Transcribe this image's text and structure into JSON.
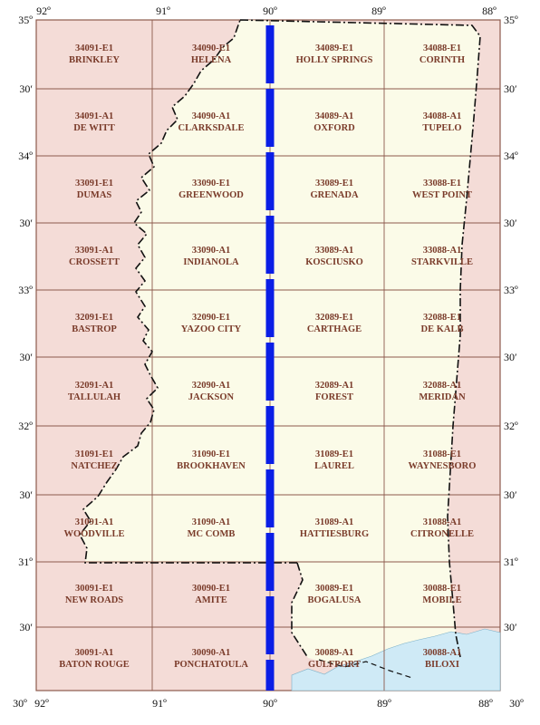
{
  "colors": {
    "outside_fill": "#f4dcd7",
    "inside_fill": "#fbfbe8",
    "water_fill": "#cfeaf6",
    "grid_line": "#8c5a4c",
    "label_text": "#7a3b2a",
    "meridian_90": "#0a1ee6",
    "border": "#111111"
  },
  "top_labels": [
    "92º",
    "91º",
    "90º",
    "89º",
    "88º"
  ],
  "bottom_labels": [
    "30º",
    "92º",
    "91º",
    "90º",
    "89º",
    "88º",
    "30º"
  ],
  "left_labels": [
    "35º",
    "30′",
    "34º",
    "30′",
    "33º",
    "30′",
    "32º",
    "30′",
    "31º",
    "30′"
  ],
  "right_labels": [
    "35º",
    "30′",
    "34º",
    "30′",
    "33º",
    "30′",
    "32º",
    "30′",
    "31º",
    "30′"
  ],
  "quads": [
    [
      {
        "code": "34091-E1",
        "name": "BRINKLEY"
      },
      {
        "code": "34090-E1",
        "name": "HELENA"
      },
      {
        "code": "34089-E1",
        "name": "HOLLY SPRINGS"
      },
      {
        "code": "34088-E1",
        "name": "CORINTH"
      }
    ],
    [
      {
        "code": "34091-A1",
        "name": "DE WITT"
      },
      {
        "code": "34090-A1",
        "name": "CLARKSDALE"
      },
      {
        "code": "34089-A1",
        "name": "OXFORD"
      },
      {
        "code": "34088-A1",
        "name": "TUPELO"
      }
    ],
    [
      {
        "code": "33091-E1",
        "name": "DUMAS"
      },
      {
        "code": "33090-E1",
        "name": "GREENWOOD"
      },
      {
        "code": "33089-E1",
        "name": "GRENADA"
      },
      {
        "code": "33088-E1",
        "name": "WEST POINT"
      }
    ],
    [
      {
        "code": "33091-A1",
        "name": "CROSSETT"
      },
      {
        "code": "33090-A1",
        "name": "INDIANOLA"
      },
      {
        "code": "33089-A1",
        "name": "KOSCIUSKO"
      },
      {
        "code": "33088-A1",
        "name": "STARKVILLE"
      }
    ],
    [
      {
        "code": "32091-E1",
        "name": "BASTROP"
      },
      {
        "code": "32090-E1",
        "name": "YAZOO CITY"
      },
      {
        "code": "32089-E1",
        "name": "CARTHAGE"
      },
      {
        "code": "32088-E1",
        "name": "DE KALB"
      }
    ],
    [
      {
        "code": "32091-A1",
        "name": "TALLULAH"
      },
      {
        "code": "32090-A1",
        "name": "JACKSON"
      },
      {
        "code": "32089-A1",
        "name": "FOREST"
      },
      {
        "code": "32088-A1",
        "name": "MERIDAN"
      }
    ],
    [
      {
        "code": "31091-E1",
        "name": "NATCHEZ"
      },
      {
        "code": "31090-E1",
        "name": "BROOKHAVEN"
      },
      {
        "code": "31089-E1",
        "name": "LAUREL"
      },
      {
        "code": "31088-E1",
        "name": "WAYNESBORO"
      }
    ],
    [
      {
        "code": "31091-A1",
        "name": "WOODVILLE"
      },
      {
        "code": "31090-A1",
        "name": "MC COMB"
      },
      {
        "code": "31089-A1",
        "name": "HATTIESBURG"
      },
      {
        "code": "31088-A1",
        "name": "CITRONELLE"
      }
    ],
    [
      {
        "code": "30091-E1",
        "name": "NEW ROADS"
      },
      {
        "code": "30090-E1",
        "name": "AMITE"
      },
      {
        "code": "30089-E1",
        "name": "BOGALUSA"
      },
      {
        "code": "30088-E1",
        "name": "MOBILE"
      }
    ],
    [
      {
        "code": "30091-A1",
        "name": "BATON ROUGE"
      },
      {
        "code": "30090-A1",
        "name": "PONCHATOULA"
      },
      {
        "code": "30089-A1",
        "name": "GULFPORT"
      },
      {
        "code": "30088-A1",
        "name": "BILOXI"
      }
    ]
  ]
}
